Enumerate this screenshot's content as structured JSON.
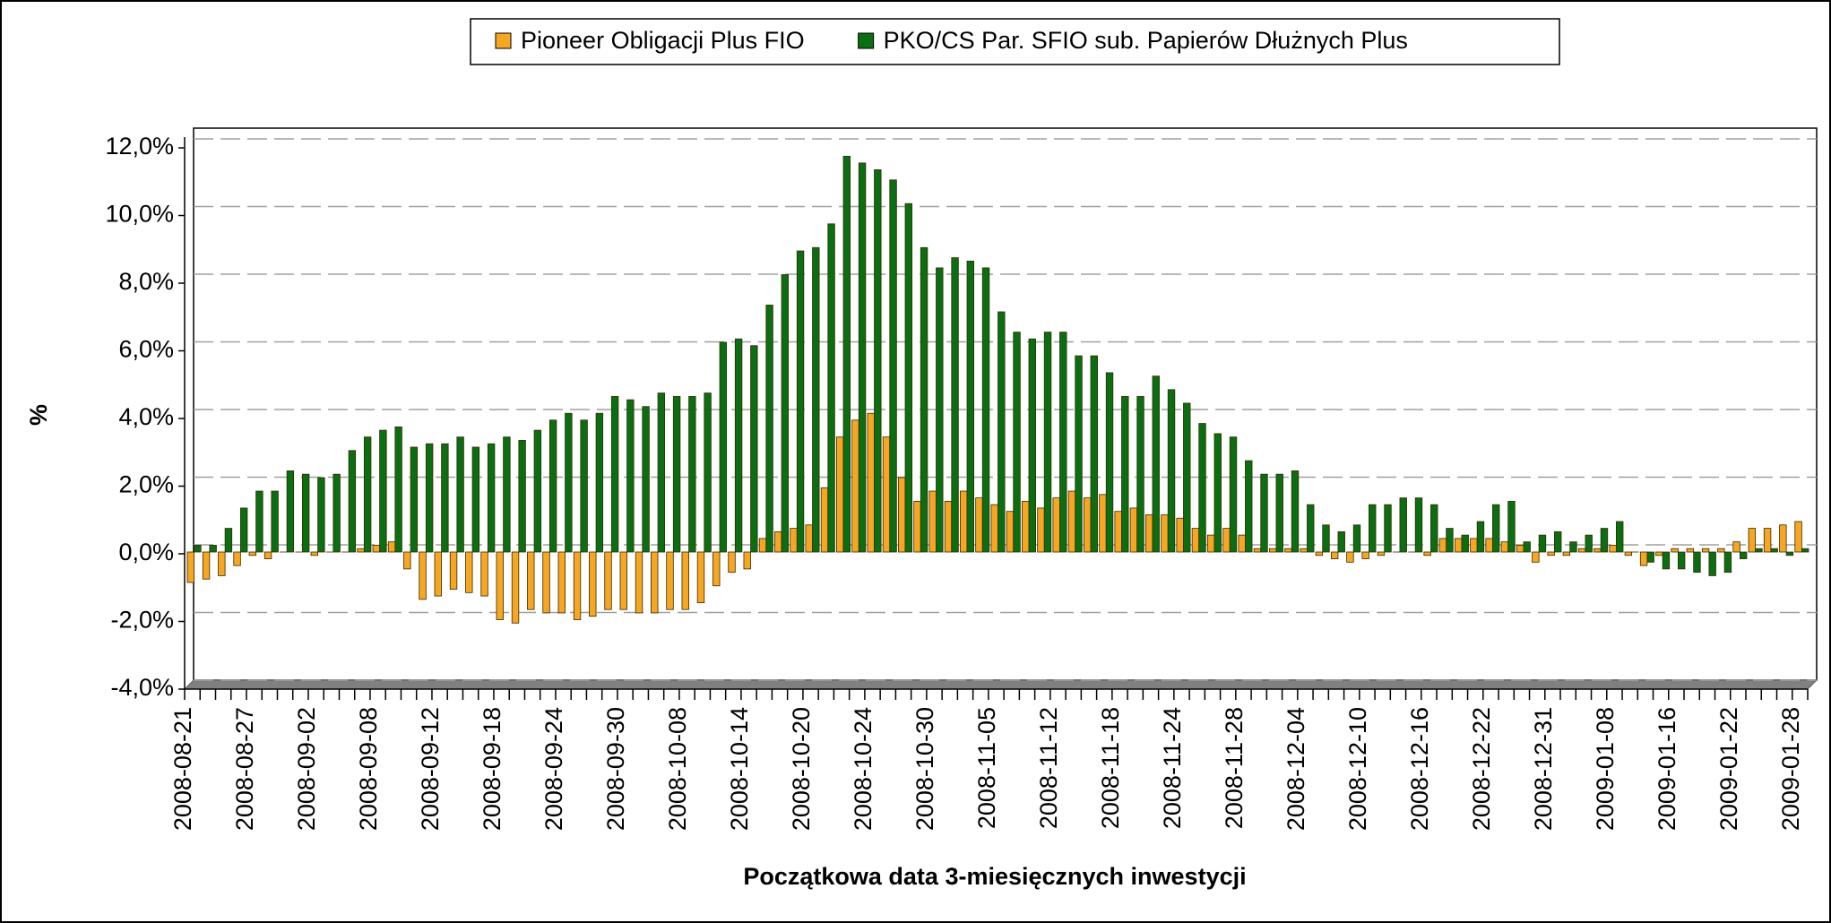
{
  "chart_data": {
    "type": "bar",
    "x_label": "Początkowa data 3-miesięcznych inwestycji",
    "y_label": "%",
    "categories": [
      "2008-08-21",
      null,
      null,
      null,
      "2008-08-27",
      null,
      null,
      null,
      "2008-09-02",
      null,
      null,
      null,
      "2008-09-08",
      null,
      null,
      null,
      "2008-09-12",
      null,
      null,
      null,
      "2008-09-18",
      null,
      null,
      null,
      "2008-09-24",
      null,
      null,
      null,
      "2008-09-30",
      null,
      null,
      null,
      "2008-10-08",
      null,
      null,
      null,
      "2008-10-14",
      null,
      null,
      null,
      "2008-10-20",
      null,
      null,
      null,
      "2008-10-24",
      null,
      null,
      null,
      "2008-10-30",
      null,
      null,
      null,
      "2008-11-05",
      null,
      null,
      null,
      "2008-11-12",
      null,
      null,
      null,
      "2008-11-18",
      null,
      null,
      null,
      "2008-11-24",
      null,
      null,
      null,
      "2008-11-28",
      null,
      null,
      null,
      "2008-12-04",
      null,
      null,
      null,
      "2008-12-10",
      null,
      null,
      null,
      "2008-12-16",
      null,
      null,
      null,
      "2008-12-22",
      null,
      null,
      null,
      "2008-12-31",
      null,
      null,
      null,
      "2009-01-08",
      null,
      null,
      null,
      "2009-01-16",
      null,
      null,
      null,
      "2009-01-22",
      null,
      null,
      null,
      "2009-01-28"
    ],
    "series": [
      {
        "name": "Pioneer Obligacji Plus FIO",
        "color": "#f5a623",
        "values": [
          -0.9,
          -0.8,
          -0.7,
          -0.4,
          -0.1,
          -0.2,
          0,
          0,
          -0.1,
          0,
          0,
          0.1,
          0.2,
          0.3,
          -0.5,
          -1.4,
          -1.3,
          -1.1,
          -1.2,
          -1.3,
          -2.0,
          -2.1,
          -1.7,
          -1.8,
          -1.8,
          -2.0,
          -1.9,
          -1.7,
          -1.7,
          -1.8,
          -1.8,
          -1.7,
          -1.7,
          -1.5,
          -1.0,
          -0.6,
          -0.5,
          0.4,
          0.6,
          0.7,
          0.8,
          1.9,
          3.4,
          3.9,
          4.1,
          3.4,
          2.2,
          1.5,
          1.8,
          1.5,
          1.8,
          1.6,
          1.4,
          1.2,
          1.5,
          1.3,
          1.6,
          1.8,
          1.6,
          1.7,
          1.2,
          1.3,
          1.1,
          1.1,
          1.0,
          0.7,
          0.5,
          0.7,
          0.5,
          0.1,
          0.1,
          0.1,
          0.1,
          -0.1,
          -0.2,
          -0.3,
          -0.2,
          -0.1,
          0,
          0,
          -0.1,
          0.4,
          0.4,
          0.4,
          0.4,
          0.3,
          0.2,
          -0.3,
          -0.1,
          -0.1,
          0.1,
          0.1,
          0.2,
          -0.1,
          -0.4,
          -0.1,
          0.1,
          0.1,
          0.1,
          0.1,
          0.3,
          0.7,
          0.7,
          0.8,
          0.9
        ]
      },
      {
        "name": "PKO/CS Par. SFIO sub. Papierów Dłużnych Plus",
        "color": "#0a6e12",
        "values": [
          0.2,
          0.2,
          0.7,
          1.3,
          1.8,
          1.8,
          2.4,
          2.3,
          2.2,
          2.3,
          3.0,
          3.4,
          3.6,
          3.7,
          3.1,
          3.2,
          3.2,
          3.4,
          3.1,
          3.2,
          3.4,
          3.3,
          3.6,
          3.9,
          4.1,
          3.9,
          4.1,
          4.6,
          4.5,
          4.3,
          4.7,
          4.6,
          4.6,
          4.7,
          6.2,
          6.3,
          6.1,
          7.3,
          8.2,
          8.9,
          9.0,
          9.7,
          11.7,
          11.5,
          11.3,
          11.0,
          10.3,
          9.0,
          8.4,
          8.7,
          8.6,
          8.4,
          7.1,
          6.5,
          6.3,
          6.5,
          6.5,
          5.8,
          5.8,
          5.3,
          4.6,
          4.6,
          5.2,
          4.8,
          4.4,
          3.8,
          3.5,
          3.4,
          2.7,
          2.3,
          2.3,
          2.4,
          1.4,
          0.8,
          0.6,
          0.8,
          1.4,
          1.4,
          1.6,
          1.6,
          1.4,
          0.7,
          0.5,
          0.9,
          1.4,
          1.5,
          0.3,
          0.5,
          0.6,
          0.3,
          0.5,
          0.7,
          0.9,
          0.0,
          -0.3,
          -0.5,
          -0.5,
          -0.6,
          -0.7,
          -0.6,
          -0.2,
          0.1,
          0.1,
          -0.1,
          0.1
        ]
      }
    ],
    "ylim": [
      -4,
      12
    ],
    "yticks": [
      {
        "value": -4,
        "label": "-4,0%"
      },
      {
        "value": -2,
        "label": "-2,0%"
      },
      {
        "value": 0,
        "label": "0,0%"
      },
      {
        "value": 2,
        "label": "2,0%"
      },
      {
        "value": 4,
        "label": "4,0%"
      },
      {
        "value": 6,
        "label": "6,0%"
      },
      {
        "value": 8,
        "label": "8,0%"
      },
      {
        "value": 10,
        "label": "10,0%"
      },
      {
        "value": 12,
        "label": "12,0%"
      }
    ],
    "grid": true,
    "legend": "top"
  }
}
